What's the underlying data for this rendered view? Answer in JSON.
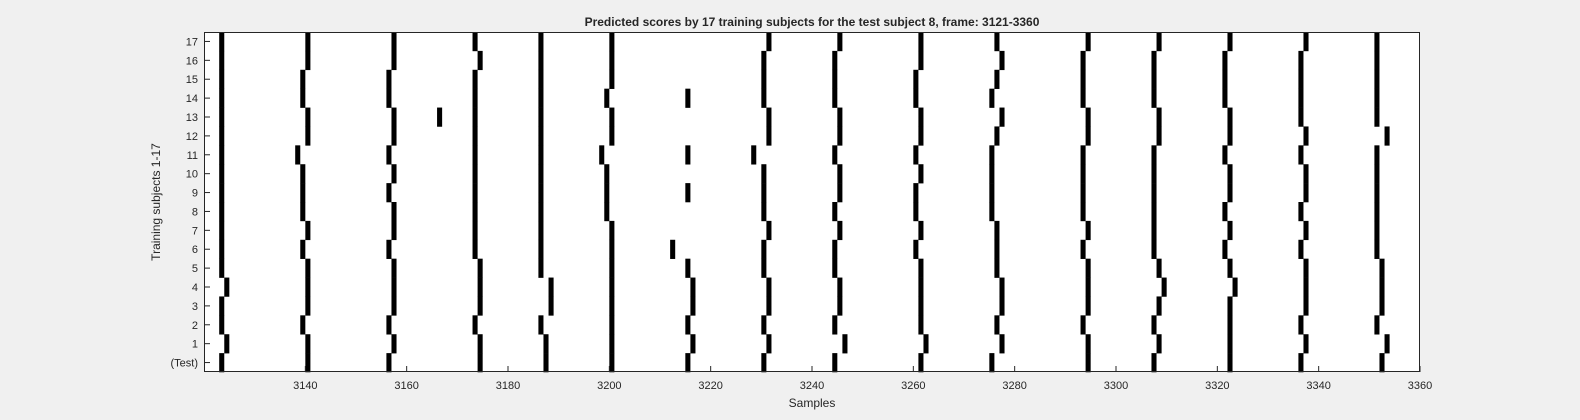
{
  "chart_data": {
    "type": "scatter",
    "title": "Predicted scores by 17 training subjects for the test subject 8, frame: 3121-3360",
    "xlabel": "Samples",
    "ylabel": "Training subjects 1-17",
    "xlim": [
      3121,
      3360
    ],
    "xticks": [
      3140,
      3160,
      3180,
      3200,
      3220,
      3240,
      3260,
      3280,
      3300,
      3320,
      3340,
      3360
    ],
    "rows": [
      "(Test)",
      "1",
      "2",
      "3",
      "4",
      "5",
      "6",
      "7",
      "8",
      "9",
      "10",
      "11",
      "12",
      "13",
      "14",
      "15",
      "16",
      "17"
    ],
    "colors": {
      "background": "#f0f0f0",
      "plot": "#ffffff",
      "mark": "#000000",
      "axis": "#262626"
    },
    "marker_width": 1,
    "events": [
      [
        3124,
        3141,
        3157,
        3175,
        3188,
        3201,
        3216,
        3231,
        3245,
        3262,
        3276,
        3295,
        3308,
        3323,
        3337,
        3353
      ],
      [
        3125,
        3141,
        3158,
        3175,
        3188,
        3201,
        3217,
        3232,
        3247,
        3263,
        3278,
        3295,
        3309,
        3323,
        3338,
        3354
      ],
      [
        3124,
        3140,
        3157,
        3174,
        3187,
        3201,
        3216,
        3231,
        3245,
        3262,
        3277,
        3294,
        3308,
        3323,
        3337,
        3352
      ],
      [
        3124,
        3141,
        3158,
        3175,
        3189,
        3201,
        3217,
        3232,
        3246,
        3262,
        3278,
        3295,
        3309,
        3323,
        3338,
        3353
      ],
      [
        3125,
        3141,
        3158,
        3175,
        3189,
        3201,
        3217,
        3232,
        3246,
        3262,
        3278,
        3295,
        3310,
        3324,
        3338,
        3353
      ],
      [
        3124,
        3141,
        3158,
        3175,
        3187,
        3201,
        3216,
        3231,
        3245,
        3262,
        3277,
        3295,
        3309,
        3323,
        3338,
        3353
      ],
      [
        3124,
        3140,
        3157,
        3174,
        3187,
        3201,
        3213,
        3231,
        3245,
        3261,
        3277,
        3294,
        3308,
        3322,
        3337,
        3352
      ],
      [
        3124,
        3141,
        3158,
        3174,
        3187,
        3201,
        3232,
        3246,
        3262,
        3277,
        3295,
        3308,
        3323,
        3338,
        3352
      ],
      [
        3124,
        3140,
        3158,
        3174,
        3187,
        3200,
        3231,
        3245,
        3261,
        3276,
        3294,
        3308,
        3322,
        3337,
        3352
      ],
      [
        3124,
        3140,
        3157,
        3174,
        3187,
        3200,
        3216,
        3231,
        3246,
        3261,
        3276,
        3294,
        3308,
        3323,
        3338,
        3352
      ],
      [
        3124,
        3140,
        3158,
        3174,
        3187,
        3200,
        3231,
        3246,
        3262,
        3276,
        3294,
        3308,
        3323,
        3338,
        3352
      ],
      [
        3124,
        3139,
        3157,
        3174,
        3187,
        3199,
        3216,
        3229,
        3245,
        3261,
        3276,
        3294,
        3308,
        3322,
        3337,
        3352
      ],
      [
        3124,
        3141,
        3158,
        3174,
        3187,
        3201,
        3232,
        3246,
        3262,
        3277,
        3295,
        3309,
        3323,
        3338,
        3354
      ],
      [
        3124,
        3141,
        3158,
        3167,
        3174,
        3187,
        3201,
        3232,
        3246,
        3262,
        3278,
        3295,
        3309,
        3323,
        3337,
        3352
      ],
      [
        3124,
        3140,
        3157,
        3174,
        3187,
        3200,
        3216,
        3231,
        3245,
        3261,
        3276,
        3294,
        3308,
        3322,
        3337,
        3352
      ],
      [
        3124,
        3140,
        3157,
        3174,
        3187,
        3201,
        3231,
        3245,
        3261,
        3277,
        3294,
        3308,
        3322,
        3337,
        3352
      ],
      [
        3124,
        3141,
        3158,
        3175,
        3187,
        3201,
        3231,
        3245,
        3262,
        3278,
        3294,
        3308,
        3322,
        3337,
        3352
      ],
      [
        3124,
        3141,
        3158,
        3174,
        3187,
        3201,
        3232,
        3246,
        3262,
        3277,
        3295,
        3309,
        3323,
        3338,
        3352
      ]
    ]
  }
}
